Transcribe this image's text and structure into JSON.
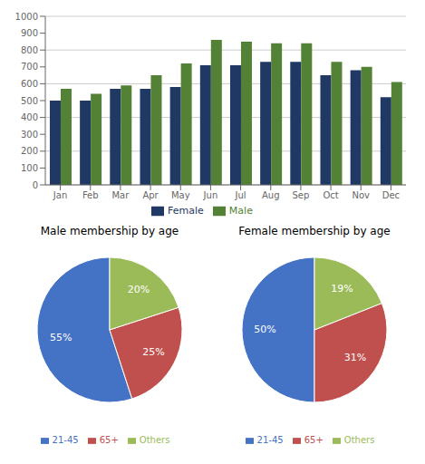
{
  "chart_data": [
    {
      "type": "bar",
      "categories": [
        "Jan",
        "Feb",
        "Mar",
        "Apr",
        "May",
        "Jun",
        "Jul",
        "Aug",
        "Sep",
        "Oct",
        "Nov",
        "Dec"
      ],
      "series": [
        {
          "name": "Female",
          "color": "#1F3864",
          "values": [
            500,
            500,
            570,
            570,
            580,
            710,
            710,
            730,
            730,
            650,
            680,
            520
          ]
        },
        {
          "name": "Male",
          "color": "#538135",
          "values": [
            570,
            540,
            590,
            650,
            720,
            860,
            850,
            840,
            840,
            730,
            700,
            610
          ]
        }
      ],
      "ylim": [
        0,
        1000
      ],
      "yticks": [
        0,
        100,
        200,
        300,
        400,
        500,
        600,
        700,
        800,
        900,
        1000
      ],
      "grid": true,
      "legend": "bottom"
    },
    {
      "type": "pie",
      "title": "Male membership by age",
      "categories": [
        "21-45",
        "65+",
        "Others"
      ],
      "values": [
        55,
        25,
        20
      ],
      "value_labels": [
        "55%",
        "25%",
        "20%"
      ],
      "colors": [
        "#4472C4",
        "#C0504D",
        "#9BBB59"
      ],
      "data_labels": true,
      "legend": "bottom"
    },
    {
      "type": "pie",
      "title": "Female membership by age",
      "categories": [
        "21-45",
        "65+",
        "Others"
      ],
      "values": [
        50,
        31,
        19
      ],
      "value_labels": [
        "50%",
        "31%",
        "19%"
      ],
      "colors": [
        "#4472C4",
        "#C0504D",
        "#9BBB59"
      ],
      "data_labels": true,
      "legend": "bottom"
    }
  ]
}
